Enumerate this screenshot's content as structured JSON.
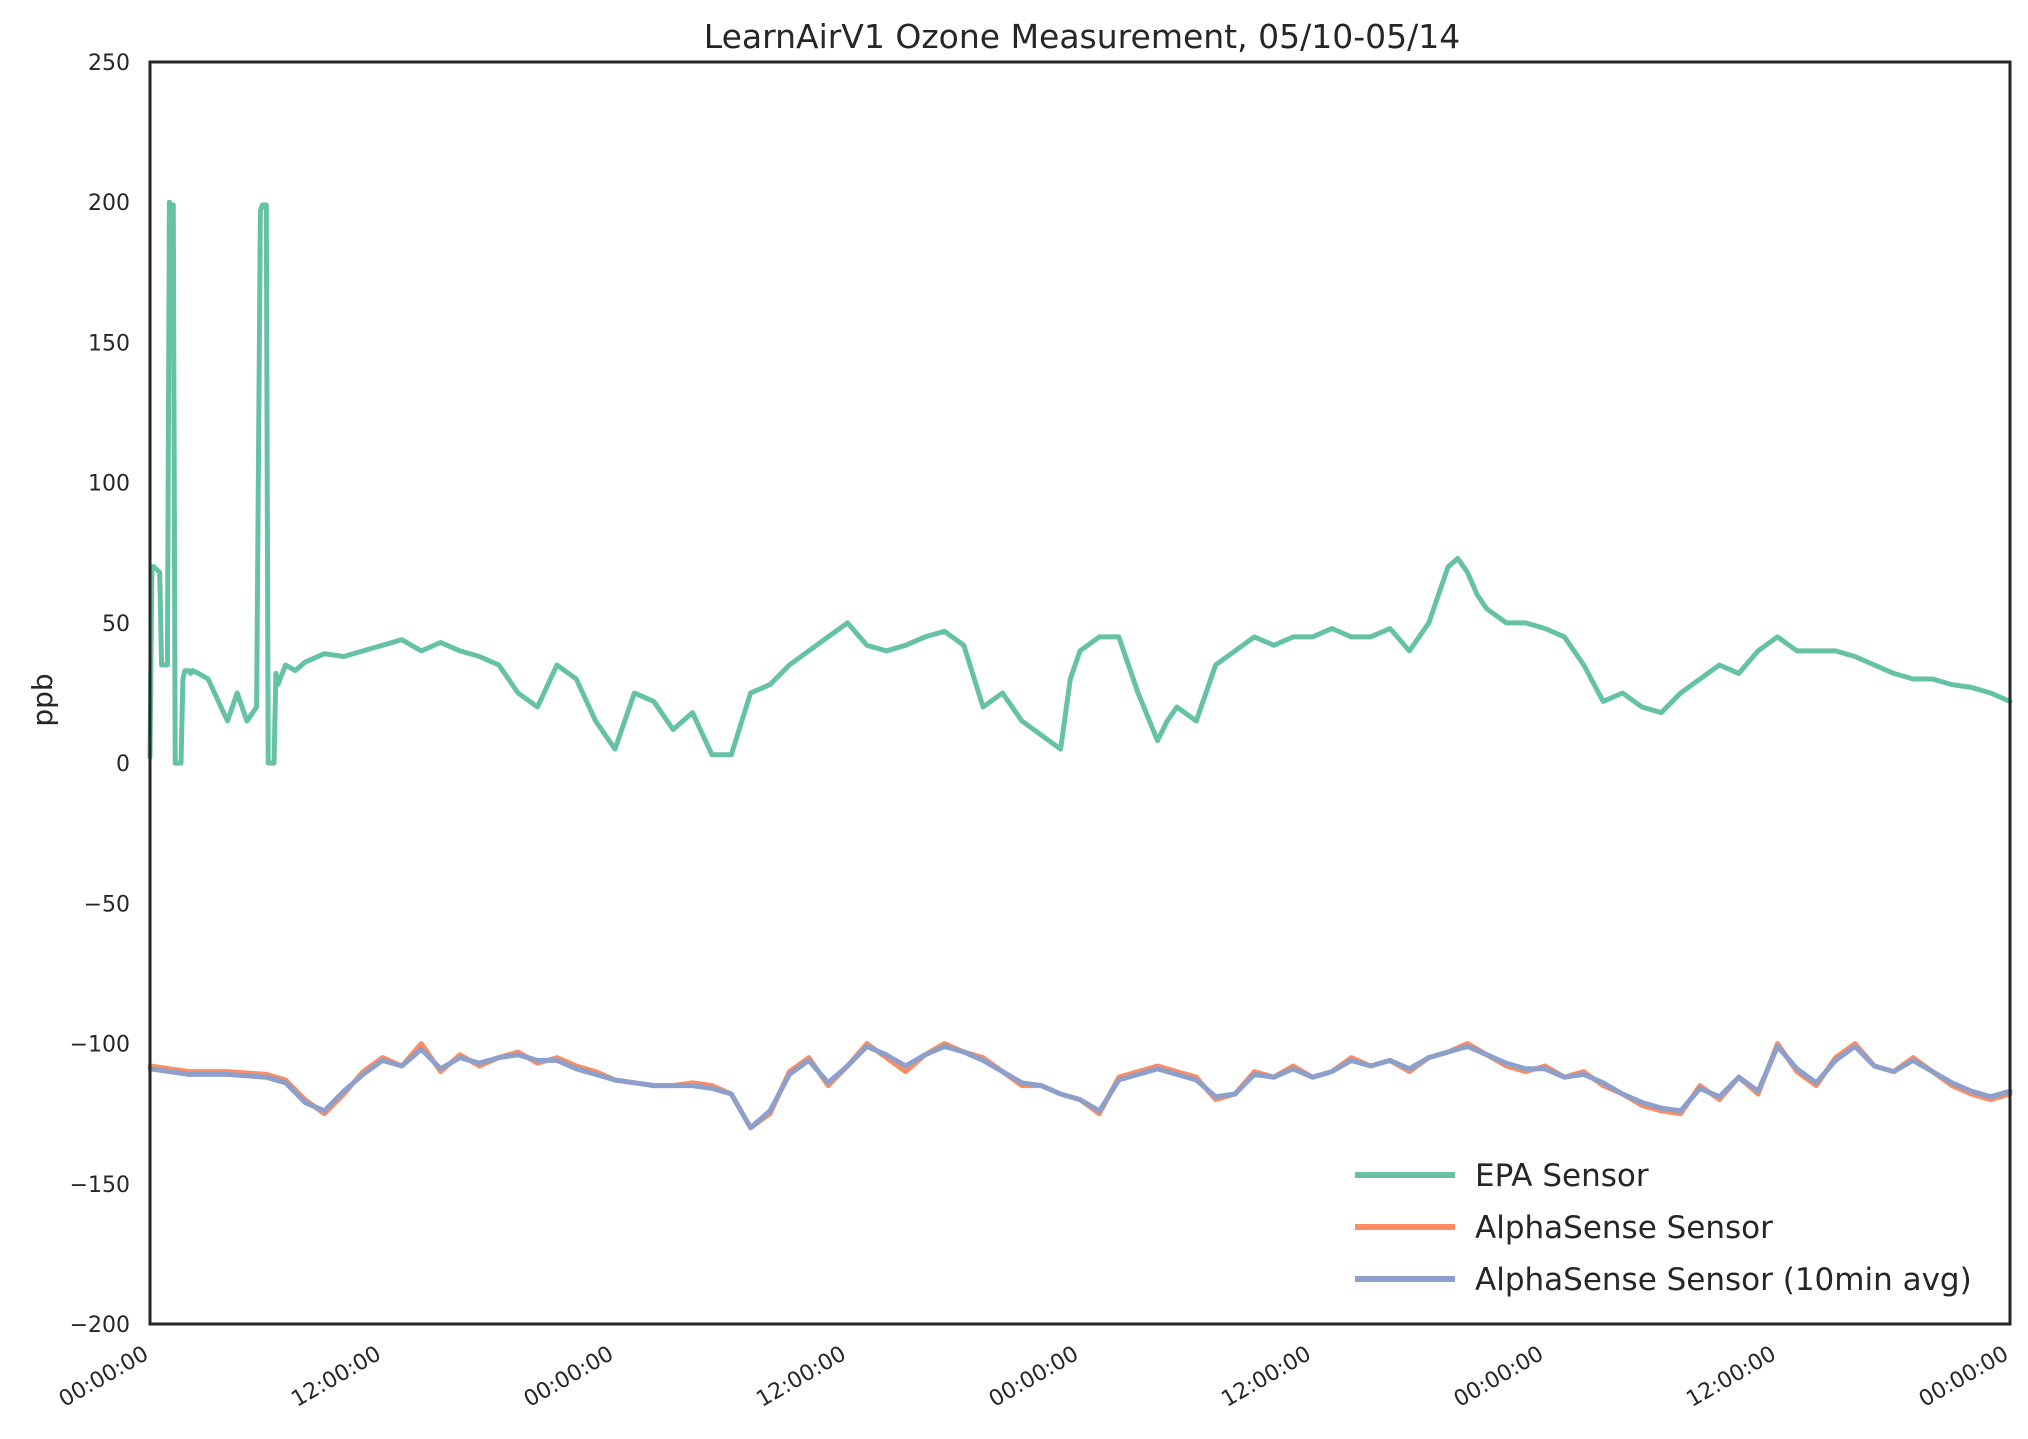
{
  "chart_data": {
    "type": "line",
    "title": "LearnAirV1 Ozone Measurement, 05/10-05/14",
    "xlabel": "",
    "ylabel": "ppb",
    "ylim": [
      -200,
      250
    ],
    "yticks": [
      250,
      200,
      150,
      100,
      50,
      0,
      -50,
      -100,
      -150,
      -200
    ],
    "yticklabels": [
      "250",
      "200",
      "150",
      "100",
      "50",
      "0",
      "−50",
      "−100",
      "−150",
      "−200"
    ],
    "xlim": [
      0,
      96
    ],
    "x_unit": "hours since 05/10 00:00",
    "xticks": [
      0,
      12,
      24,
      36,
      48,
      60,
      72,
      84,
      96
    ],
    "xticklabels": [
      "00:00:00",
      "12:00:00",
      "00:00:00",
      "12:00:00",
      "00:00:00",
      "12:00:00",
      "00:00:00",
      "12:00:00",
      "00:00:00"
    ],
    "grid": false,
    "legend_position": "lower-right",
    "series": [
      {
        "name": "EPA Sensor",
        "color": "#66c2a5",
        "x": [
          0,
          0.1,
          0.2,
          0.5,
          0.6,
          0.9,
          1.0,
          1.1,
          1.2,
          1.3,
          1.6,
          1.7,
          1.8,
          2.0,
          2.1,
          2.2,
          2.5,
          3.0,
          4.0,
          4.5,
          5.0,
          5.5,
          5.7,
          5.8,
          6.0,
          6.1,
          6.2,
          6.4,
          6.5,
          6.6,
          7.0,
          7.5,
          8.0,
          9.0,
          10.0,
          11.0,
          12.0,
          13.0,
          14.0,
          15.0,
          16.0,
          17.0,
          18.0,
          19.0,
          20.0,
          21.0,
          22.0,
          23.0,
          24.0,
          25.0,
          26.0,
          27.0,
          28.0,
          29.0,
          30.0,
          31.0,
          32.0,
          33.0,
          34.0,
          35.0,
          36.0,
          37.0,
          38.0,
          39.0,
          40.0,
          41.0,
          42.0,
          43.0,
          44.0,
          45.0,
          46.0,
          47.0,
          47.5,
          48.0,
          49.0,
          50.0,
          51.0,
          52.0,
          52.5,
          53.0,
          54.0,
          55.0,
          56.0,
          57.0,
          58.0,
          59.0,
          60.0,
          61.0,
          62.0,
          63.0,
          64.0,
          65.0,
          66.0,
          67.0,
          67.5,
          68.0,
          68.5,
          69.0,
          70.0,
          71.0,
          72.0,
          73.0,
          74.0,
          75.0,
          76.0,
          77.0,
          78.0,
          79.0,
          80.0,
          81.0,
          82.0,
          83.0,
          84.0,
          85.0,
          86.0,
          87.0,
          88.0,
          89.0,
          90.0,
          91.0,
          92.0,
          93.0,
          94.0,
          95.0,
          96.0
        ],
        "values": [
          2,
          70,
          70,
          68,
          35,
          35,
          200,
          199,
          199,
          0,
          0,
          30,
          33,
          33,
          32,
          33,
          32,
          30,
          15,
          25,
          15,
          20,
          197,
          199,
          199,
          0,
          0,
          0,
          32,
          28,
          35,
          33,
          36,
          39,
          38,
          40,
          42,
          44,
          40,
          43,
          40,
          38,
          35,
          25,
          20,
          35,
          30,
          15,
          5,
          25,
          22,
          12,
          18,
          3,
          3,
          25,
          28,
          35,
          40,
          45,
          50,
          42,
          40,
          42,
          45,
          47,
          42,
          20,
          25,
          15,
          10,
          5,
          30,
          40,
          45,
          45,
          25,
          8,
          15,
          20,
          15,
          35,
          40,
          45,
          42,
          45,
          45,
          48,
          45,
          45,
          48,
          40,
          50,
          70,
          73,
          68,
          60,
          55,
          50,
          50,
          48,
          45,
          35,
          22,
          25,
          20,
          18,
          25,
          30,
          35,
          32,
          40,
          45,
          40,
          40,
          40,
          38,
          35,
          32,
          30,
          30,
          28,
          27,
          25,
          22
        ]
      },
      {
        "name": "AlphaSense Sensor",
        "color": "#fc8d62",
        "x": [
          0,
          2,
          4,
          6,
          7,
          8,
          9,
          10,
          11,
          12,
          13,
          14,
          15,
          16,
          17,
          18,
          19,
          20,
          21,
          22,
          23,
          24,
          25,
          26,
          27,
          28,
          29,
          30,
          31,
          32,
          33,
          34,
          35,
          36,
          37,
          38,
          39,
          40,
          41,
          42,
          43,
          44,
          45,
          46,
          47,
          48,
          49,
          50,
          51,
          52,
          53,
          54,
          55,
          56,
          57,
          58,
          59,
          60,
          61,
          62,
          63,
          64,
          65,
          66,
          67,
          68,
          69,
          70,
          71,
          72,
          73,
          74,
          75,
          76,
          77,
          78,
          79,
          80,
          81,
          82,
          83,
          84,
          85,
          86,
          87,
          88,
          89,
          90,
          91,
          92,
          93,
          94,
          95,
          96
        ],
        "values": [
          -108,
          -110,
          -110,
          -111,
          -113,
          -120,
          -125,
          -118,
          -110,
          -105,
          -108,
          -100,
          -110,
          -104,
          -108,
          -105,
          -103,
          -107,
          -105,
          -108,
          -110,
          -113,
          -114,
          -115,
          -115,
          -114,
          -115,
          -118,
          -130,
          -125,
          -110,
          -105,
          -115,
          -108,
          -100,
          -105,
          -110,
          -104,
          -100,
          -103,
          -105,
          -110,
          -115,
          -115,
          -118,
          -120,
          -125,
          -112,
          -110,
          -108,
          -110,
          -112,
          -120,
          -118,
          -110,
          -112,
          -108,
          -112,
          -110,
          -105,
          -108,
          -106,
          -110,
          -105,
          -103,
          -100,
          -104,
          -108,
          -110,
          -108,
          -112,
          -110,
          -115,
          -118,
          -122,
          -124,
          -125,
          -115,
          -120,
          -112,
          -118,
          -100,
          -110,
          -115,
          -105,
          -100,
          -108,
          -110,
          -105,
          -110,
          -115,
          -118,
          -120,
          -118
        ]
      },
      {
        "name": "AlphaSense Sensor (10min avg)",
        "color": "#8da0cb",
        "x": [
          0,
          2,
          4,
          6,
          7,
          8,
          9,
          10,
          11,
          12,
          13,
          14,
          15,
          16,
          17,
          18,
          19,
          20,
          21,
          22,
          23,
          24,
          25,
          26,
          27,
          28,
          29,
          30,
          31,
          32,
          33,
          34,
          35,
          36,
          37,
          38,
          39,
          40,
          41,
          42,
          43,
          44,
          45,
          46,
          47,
          48,
          49,
          50,
          51,
          52,
          53,
          54,
          55,
          56,
          57,
          58,
          59,
          60,
          61,
          62,
          63,
          64,
          65,
          66,
          67,
          68,
          69,
          70,
          71,
          72,
          73,
          74,
          75,
          76,
          77,
          78,
          79,
          80,
          81,
          82,
          83,
          84,
          85,
          86,
          87,
          88,
          89,
          90,
          91,
          92,
          93,
          94,
          95,
          96
        ],
        "values": [
          -109,
          -111,
          -111,
          -112,
          -114,
          -121,
          -124,
          -117,
          -111,
          -106,
          -108,
          -102,
          -109,
          -105,
          -107,
          -105,
          -104,
          -106,
          -106,
          -109,
          -111,
          -113,
          -114,
          -115,
          -115,
          -115,
          -116,
          -118,
          -130,
          -124,
          -111,
          -106,
          -114,
          -108,
          -101,
          -104,
          -108,
          -104,
          -101,
          -103,
          -106,
          -110,
          -114,
          -115,
          -118,
          -120,
          -124,
          -113,
          -111,
          -109,
          -111,
          -113,
          -119,
          -118,
          -111,
          -112,
          -109,
          -112,
          -110,
          -106,
          -108,
          -106,
          -109,
          -105,
          -103,
          -101,
          -104,
          -107,
          -109,
          -109,
          -112,
          -111,
          -114,
          -118,
          -121,
          -123,
          -124,
          -116,
          -119,
          -112,
          -117,
          -101,
          -109,
          -114,
          -106,
          -101,
          -108,
          -110,
          -106,
          -110,
          -114,
          -117,
          -119,
          -117
        ]
      }
    ]
  }
}
